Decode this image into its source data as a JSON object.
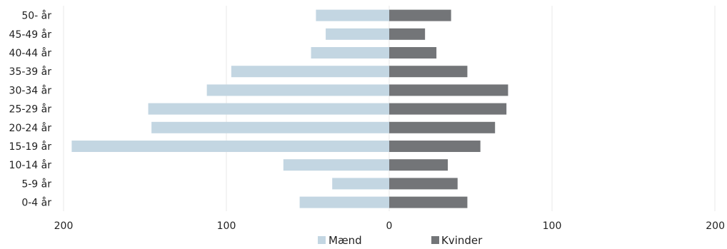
{
  "chart_data": {
    "type": "bar",
    "orientation": "horizontal",
    "layout": "population-pyramid",
    "categories": [
      "50- år",
      "45-49 år",
      "40-44 år",
      "35-39 år",
      "30-34 år",
      "25-29 år",
      "20-24 år",
      "15-19 år",
      "10-14 år",
      "5-9 år",
      "0-4 år"
    ],
    "series": [
      {
        "name": "Mænd",
        "side": "left",
        "color": "#c3d6e2",
        "values": [
          45,
          39,
          48,
          97,
          112,
          148,
          146,
          195,
          65,
          35,
          55
        ]
      },
      {
        "name": "Kvinder",
        "side": "right",
        "color": "#737578",
        "values": [
          38,
          22,
          29,
          48,
          73,
          72,
          65,
          56,
          36,
          42,
          48
        ]
      }
    ],
    "xlim": [
      -200,
      200
    ],
    "x_ticks": [
      -200,
      -100,
      0,
      100,
      200
    ],
    "x_tick_labels": [
      "200",
      "100",
      "0",
      "100",
      "200"
    ],
    "grid": "vertical",
    "legend_position": "bottom-center",
    "title": "",
    "xlabel": "",
    "ylabel": ""
  }
}
